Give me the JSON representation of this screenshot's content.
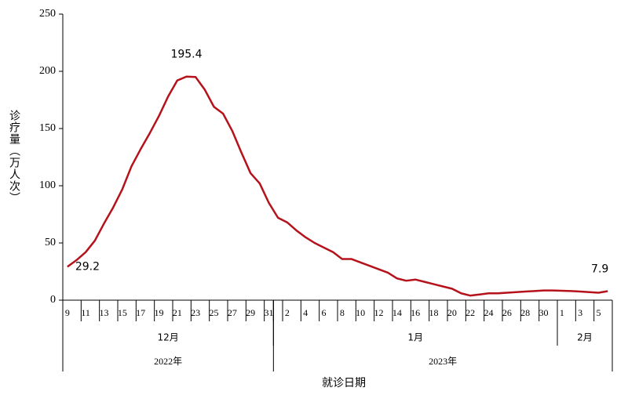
{
  "chart_data": {
    "type": "line",
    "y_label": "诊疗量（万人次）",
    "x_label": "就诊日期",
    "categories": [
      "9",
      null,
      "11",
      null,
      "13",
      null,
      "15",
      null,
      "17",
      null,
      "19",
      null,
      "21",
      null,
      "23",
      null,
      "25",
      null,
      "27",
      null,
      "29",
      null,
      "31",
      null,
      "2",
      null,
      "4",
      null,
      "6",
      null,
      "8",
      null,
      "10",
      null,
      "12",
      null,
      "14",
      null,
      "16",
      null,
      "18",
      null,
      "20",
      null,
      "22",
      null,
      "24",
      null,
      "26",
      null,
      "28",
      null,
      "30",
      null,
      "1",
      null,
      "3",
      null,
      "5",
      null
    ],
    "months": [
      "12月",
      "1月",
      "2月"
    ],
    "years": [
      "2022年",
      "2023年"
    ],
    "series": [
      {
        "name": "诊疗量",
        "color": "#b5121b",
        "values": [
          29.2,
          35,
          42,
          52,
          67,
          81,
          97,
          117,
          132,
          146,
          161,
          178,
          192,
          195.4,
          195,
          184,
          169,
          163,
          148,
          129,
          111,
          102,
          85,
          72,
          68,
          61,
          55,
          50,
          46,
          42,
          36,
          36,
          33,
          30,
          27,
          24,
          19,
          17,
          18,
          16,
          14,
          12,
          10,
          6,
          4,
          5,
          6,
          6,
          6.5,
          7,
          7.5,
          8,
          8.5,
          8.5,
          8.2,
          8,
          7.5,
          7,
          6.5,
          7.9
        ]
      }
    ],
    "labeled_points": [
      0,
      13,
      59
    ],
    "ylim": [
      0,
      250
    ],
    "yticks": [
      0,
      50,
      100,
      150,
      200,
      250
    ]
  }
}
